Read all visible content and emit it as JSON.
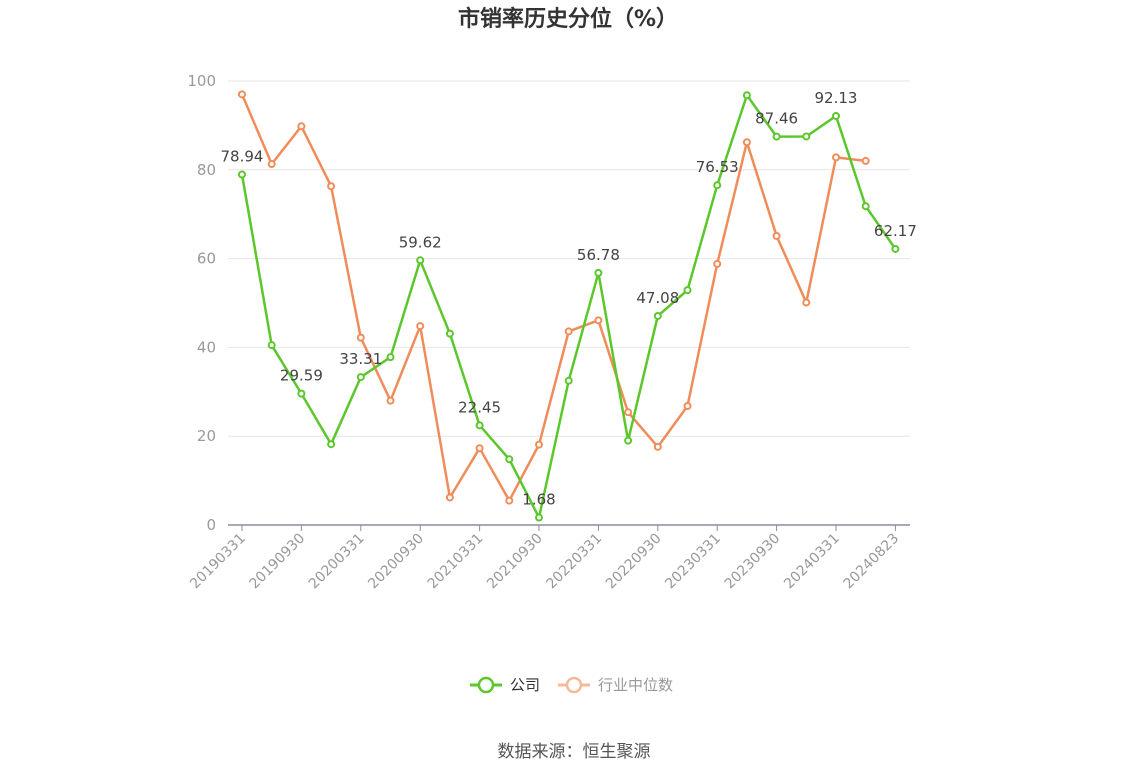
{
  "chart_data": {
    "type": "line",
    "title": "市销率历史分位（%）",
    "xlabel": "",
    "ylabel": "",
    "ylim": [
      0,
      100
    ],
    "yticks": [
      0,
      20,
      40,
      60,
      80,
      100
    ],
    "x": [
      "20190331",
      "20190630",
      "20190930",
      "20191231",
      "20200331",
      "20200630",
      "20200930",
      "20201231",
      "20210331",
      "20210630",
      "20210930",
      "20211231",
      "20220331",
      "20220630",
      "20220930",
      "20221231",
      "20230331",
      "20230630",
      "20230930",
      "20231231",
      "20240331",
      "20240630",
      "20240823"
    ],
    "xtick_labels": [
      "20190331",
      "20190930",
      "20200331",
      "20200930",
      "20210331",
      "20210930",
      "20220331",
      "20220930",
      "20230331",
      "20230930",
      "20240331",
      "20240823"
    ],
    "grid": true,
    "legend_position": "bottom",
    "series": [
      {
        "name": "公司",
        "color": "#5cc72c",
        "values": [
          78.94,
          40.5,
          29.59,
          18.2,
          33.31,
          37.8,
          59.62,
          43.1,
          22.45,
          14.8,
          1.68,
          32.5,
          56.78,
          19.0,
          47.08,
          52.9,
          76.53,
          96.8,
          87.46,
          87.5,
          92.13,
          71.8,
          62.17
        ],
        "labels": [
          "78.94",
          "",
          "29.59",
          "",
          "33.31",
          "",
          "59.62",
          "",
          "22.45",
          "",
          "1.68",
          "",
          "56.78",
          "",
          "47.08",
          "",
          "76.53",
          "",
          "87.46",
          "",
          "92.13",
          "",
          "62.17"
        ]
      },
      {
        "name": "行业中位数",
        "color": "#f08c5a",
        "values": [
          97.0,
          81.3,
          89.8,
          76.3,
          42.2,
          28.0,
          44.8,
          6.2,
          17.3,
          5.5,
          18.1,
          43.6,
          46.1,
          25.4,
          17.6,
          26.8,
          58.8,
          86.2,
          65.1,
          50.1,
          82.8,
          82.0,
          null
        ]
      }
    ]
  },
  "legend": {
    "items": [
      {
        "name": "公司",
        "color": "#5cc72c",
        "text_color": "#333333"
      },
      {
        "name": "行业中位数",
        "color": "#f7b89a",
        "text_color": "#999999"
      }
    ]
  },
  "source": "数据来源：恒生聚源"
}
